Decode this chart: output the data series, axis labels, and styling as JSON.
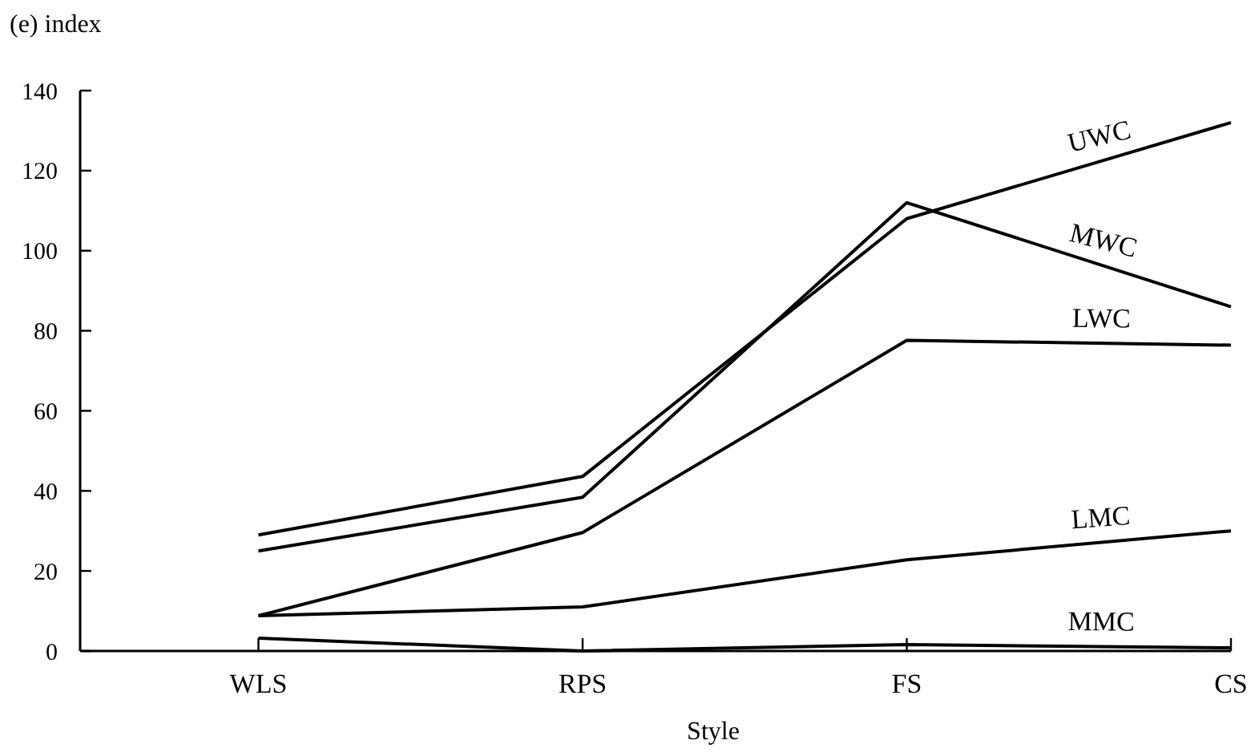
{
  "chart_data": {
    "type": "line",
    "ylabel": "(e) index",
    "xlabel": "Style",
    "categories": [
      "WLS",
      "RPS",
      "FS",
      "CS"
    ],
    "ylim": [
      0,
      140
    ],
    "yticks": [
      0,
      20,
      40,
      60,
      80,
      100,
      120,
      140
    ],
    "grid": false,
    "marker": "none",
    "line_style": "solid",
    "series": [
      {
        "name": "UWC",
        "color": "#000000",
        "values": [
          29,
          43.6,
          108,
          132
        ]
      },
      {
        "name": "MWC",
        "color": "#000000",
        "values": [
          25,
          38.4,
          112,
          86
        ]
      },
      {
        "name": "LWC",
        "color": "#000000",
        "values": [
          8.8,
          29.6,
          77.6,
          76.4
        ]
      },
      {
        "name": "LMC",
        "color": "#000000",
        "values": [
          8.8,
          11,
          22.8,
          30
        ]
      },
      {
        "name": "MMC",
        "color": "#000000",
        "values": [
          3.2,
          0,
          1.6,
          0.8
        ]
      }
    ]
  }
}
